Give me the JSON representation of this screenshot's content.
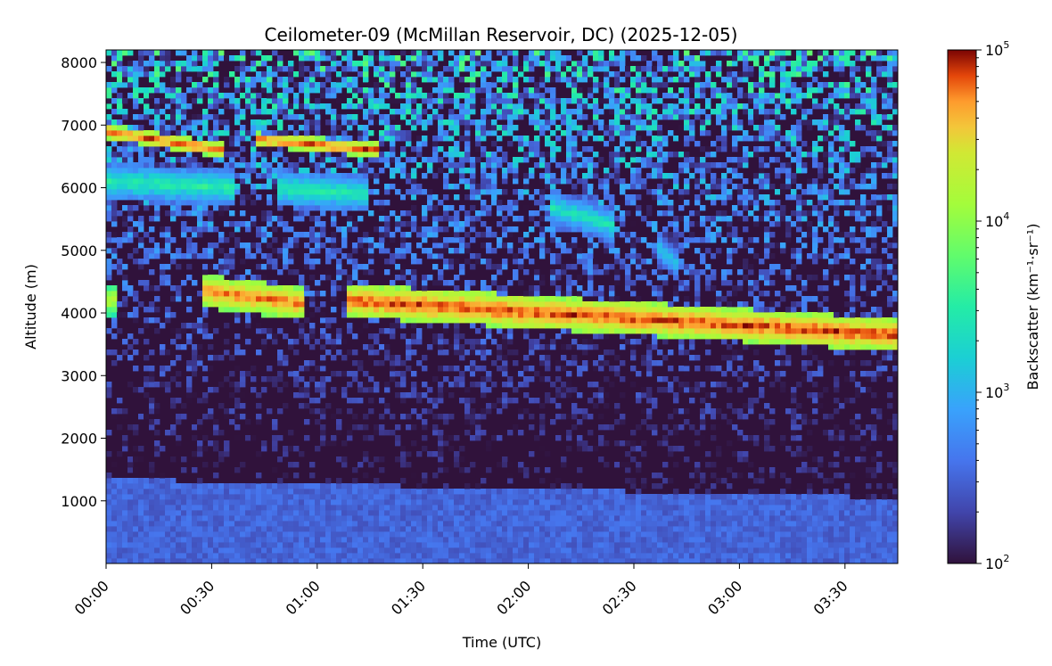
{
  "chart_data": {
    "type": "heatmap",
    "title": "Ceilometer-09 (McMillan Reservoir, DC) (2025-12-05)",
    "xlabel": "Time (UTC)",
    "ylabel": "Altitude (m)",
    "colorbar_label": "Backscatter (km⁻¹·sr⁻¹)",
    "x_unit": "hours since 00:00 UTC",
    "xlim": [
      0,
      3.75
    ],
    "ylim": [
      0,
      8200
    ],
    "x_ticks": [
      {
        "value": 0,
        "label": "00:00"
      },
      {
        "value": 0.5,
        "label": "00:30"
      },
      {
        "value": 1,
        "label": "01:00"
      },
      {
        "value": 1.5,
        "label": "01:30"
      },
      {
        "value": 2,
        "label": "02:00"
      },
      {
        "value": 2.5,
        "label": "02:30"
      },
      {
        "value": 3,
        "label": "03:00"
      },
      {
        "value": 3.5,
        "label": "03:30"
      }
    ],
    "y_ticks": [
      {
        "value": 1000,
        "label": "1000"
      },
      {
        "value": 2000,
        "label": "2000"
      },
      {
        "value": 3000,
        "label": "3000"
      },
      {
        "value": 4000,
        "label": "4000"
      },
      {
        "value": 5000,
        "label": "5000"
      },
      {
        "value": 6000,
        "label": "6000"
      },
      {
        "value": 7000,
        "label": "7000"
      },
      {
        "value": 8000,
        "label": "8000"
      }
    ],
    "colorbar": {
      "scale": "log",
      "range": [
        100,
        100000
      ],
      "colormap": "turbo",
      "ticks": [
        {
          "value": 100,
          "base": "10",
          "exp": "2"
        },
        {
          "value": 1000,
          "base": "10",
          "exp": "3"
        },
        {
          "value": 10000,
          "base": "10",
          "exp": "4"
        },
        {
          "value": 100000,
          "base": "10",
          "exp": "5"
        }
      ]
    },
    "features": [
      {
        "name": "boundary layer",
        "t_start": 0,
        "t_end": 3.75,
        "alt_base": 0,
        "alt_top_start": 1350,
        "alt_top_end": 1050,
        "log10_backscatter": 2.5
      },
      {
        "name": "upper cloud",
        "t_start": 0,
        "t_end": 0.55,
        "alt_center_start": 6900,
        "alt_center_end": 6600,
        "log10_backscatter": 4.9
      },
      {
        "name": "upper cloud",
        "t_start": 0.7,
        "t_end": 1.3,
        "alt_center_start": 6780,
        "alt_center_end": 6600,
        "log10_backscatter": 4.9
      },
      {
        "name": "virga",
        "t_start": 0,
        "t_end": 0.6,
        "alt_center_start": 6100,
        "alt_center_end": 6000,
        "log10_backscatter": 3.5
      },
      {
        "name": "virga",
        "t_start": 0.8,
        "t_end": 1.25,
        "alt_center_start": 6000,
        "alt_center_end": 5900,
        "log10_backscatter": 3.5
      },
      {
        "name": "virga",
        "t_start": 2.1,
        "t_end": 2.4,
        "alt_center_start": 5700,
        "alt_center_end": 5400,
        "log10_backscatter": 3.4
      },
      {
        "name": "virga",
        "t_start": 2.6,
        "t_end": 2.7,
        "alt_center_start": 5100,
        "alt_center_end": 4800,
        "log10_backscatter": 3.2
      },
      {
        "name": "mid cloud",
        "t_start": 0.45,
        "t_end": 0.95,
        "alt_center_start": 4350,
        "alt_center_end": 4150,
        "log10_backscatter": 4.8
      },
      {
        "name": "mid cloud",
        "t_start": 1.15,
        "t_end": 3.75,
        "alt_center_start": 4200,
        "alt_center_end": 3650,
        "log10_backscatter": 4.9
      },
      {
        "name": "mid cloud",
        "t_start": 0,
        "t_end": 0.05,
        "alt_center_start": 4200,
        "alt_center_end": 4200,
        "log10_backscatter": 4.3
      }
    ]
  }
}
